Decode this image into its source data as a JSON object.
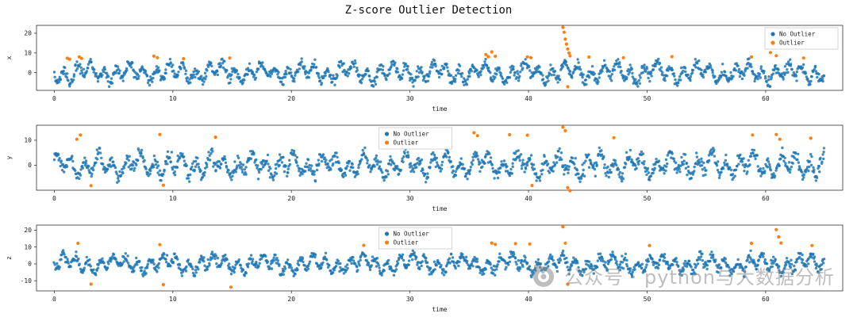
{
  "title": "Z-score Outlier Detection",
  "colors": {
    "no_outlier": "#1f77b4",
    "outlier": "#ff7f0e",
    "axis": "#333333",
    "watermark": "#8a8a8a"
  },
  "legend": {
    "no_outlier_label": "No Outlier",
    "outlier_label": "Outlier"
  },
  "watermark": {
    "text": "公众号 · python与大数据分析",
    "icon": "camera-icon"
  },
  "chart_data": [
    {
      "type": "scatter",
      "ylabel": "x",
      "xlabel": "time",
      "xlim": [
        -1.5,
        66.5
      ],
      "ylim": [
        -9,
        24
      ],
      "xticks": [
        0,
        10,
        20,
        30,
        40,
        50,
        60
      ],
      "yticks": [
        0,
        10,
        20
      ],
      "grid": false,
      "legend_entries": [
        "No Outlier",
        "Outlier"
      ],
      "legend_loc": "upper right",
      "series": [
        {
          "name": "No Outlier",
          "generator": {
            "n": 1300,
            "seed": 11,
            "amp1": 3.2,
            "freq1": 0.9,
            "amp2": 2.2,
            "freq2": 0.27,
            "noise": 1.3,
            "clip": 7.2
          }
        },
        {
          "name": "Outlier",
          "points": [
            [
              1.1,
              7.3
            ],
            [
              1.3,
              6.8
            ],
            [
              2.1,
              8.0
            ],
            [
              2.3,
              7.2
            ],
            [
              8.4,
              8.4
            ],
            [
              8.7,
              7.6
            ],
            [
              10.9,
              7.1
            ],
            [
              14.8,
              7.4
            ],
            [
              36.4,
              9.2
            ],
            [
              36.6,
              8.1
            ],
            [
              36.9,
              10.5
            ],
            [
              37.2,
              8.3
            ],
            [
              39.9,
              8.0
            ],
            [
              40.2,
              7.6
            ],
            [
              42.9,
              23.0
            ],
            [
              43.0,
              20.5
            ],
            [
              43.1,
              17.0
            ],
            [
              43.2,
              14.5
            ],
            [
              43.3,
              12.0
            ],
            [
              43.4,
              10.0
            ],
            [
              43.5,
              8.5
            ],
            [
              43.3,
              -7.2
            ],
            [
              45.1,
              7.9
            ],
            [
              48.0,
              7.6
            ],
            [
              52.1,
              8.1
            ],
            [
              58.8,
              8.0
            ],
            [
              60.4,
              10.2
            ],
            [
              60.9,
              8.6
            ],
            [
              63.2,
              7.4
            ]
          ]
        }
      ]
    },
    {
      "type": "scatter",
      "ylabel": "y",
      "xlabel": "time",
      "xlim": [
        -1.5,
        66.5
      ],
      "ylim": [
        -10,
        16
      ],
      "xticks": [
        0,
        10,
        20,
        30,
        40,
        50,
        60
      ],
      "yticks": [
        0,
        10
      ],
      "grid": false,
      "legend_entries": [
        "No Outlier",
        "Outlier"
      ],
      "legend_loc": "upper center",
      "series": [
        {
          "name": "No Outlier",
          "generator": {
            "n": 1300,
            "seed": 23,
            "amp1": 3.0,
            "freq1": 0.85,
            "amp2": 2.1,
            "freq2": 0.31,
            "noise": 1.3,
            "clip": 7.0
          }
        },
        {
          "name": "Outlier",
          "points": [
            [
              1.9,
              10.4
            ],
            [
              2.2,
              12.1
            ],
            [
              3.1,
              -8.2
            ],
            [
              8.9,
              12.3
            ],
            [
              9.2,
              -8.0
            ],
            [
              13.6,
              11.2
            ],
            [
              35.4,
              13.0
            ],
            [
              35.7,
              11.8
            ],
            [
              38.4,
              12.2
            ],
            [
              39.9,
              12.0
            ],
            [
              40.3,
              -8.1
            ],
            [
              42.9,
              15.2
            ],
            [
              43.1,
              13.8
            ],
            [
              43.3,
              -9.0
            ],
            [
              43.5,
              -10.2
            ],
            [
              47.2,
              11.0
            ],
            [
              58.9,
              12.1
            ],
            [
              60.9,
              12.3
            ],
            [
              61.2,
              10.4
            ],
            [
              63.8,
              10.8
            ]
          ]
        }
      ]
    },
    {
      "type": "scatter",
      "ylabel": "z",
      "xlabel": "time",
      "xlim": [
        -1.5,
        66.5
      ],
      "ylim": [
        -16,
        23
      ],
      "xticks": [
        0,
        10,
        20,
        30,
        40,
        50,
        60
      ],
      "yticks": [
        -10,
        0,
        10,
        20
      ],
      "grid": false,
      "legend_entries": [
        "No Outlier",
        "Outlier"
      ],
      "legend_loc": "upper center",
      "series": [
        {
          "name": "No Outlier",
          "generator": {
            "n": 1300,
            "seed": 37,
            "amp1": 3.4,
            "freq1": 0.95,
            "amp2": 2.4,
            "freq2": 0.24,
            "noise": 1.4,
            "clip": 8.0
          }
        },
        {
          "name": "Outlier",
          "points": [
            [
              2.0,
              12.2
            ],
            [
              3.1,
              -12.0
            ],
            [
              8.9,
              11.4
            ],
            [
              9.2,
              -12.3
            ],
            [
              14.9,
              -13.8
            ],
            [
              26.1,
              11.0
            ],
            [
              27.9,
              12.1
            ],
            [
              28.2,
              10.8
            ],
            [
              36.9,
              12.4
            ],
            [
              37.2,
              11.6
            ],
            [
              38.9,
              12.0
            ],
            [
              40.1,
              11.8
            ],
            [
              42.9,
              22.0
            ],
            [
              43.1,
              12.3
            ],
            [
              43.3,
              -12.1
            ],
            [
              50.2,
              10.9
            ],
            [
              58.8,
              12.2
            ],
            [
              60.9,
              20.3
            ],
            [
              61.1,
              16.0
            ],
            [
              61.3,
              12.4
            ],
            [
              63.9,
              10.9
            ]
          ]
        }
      ]
    }
  ]
}
